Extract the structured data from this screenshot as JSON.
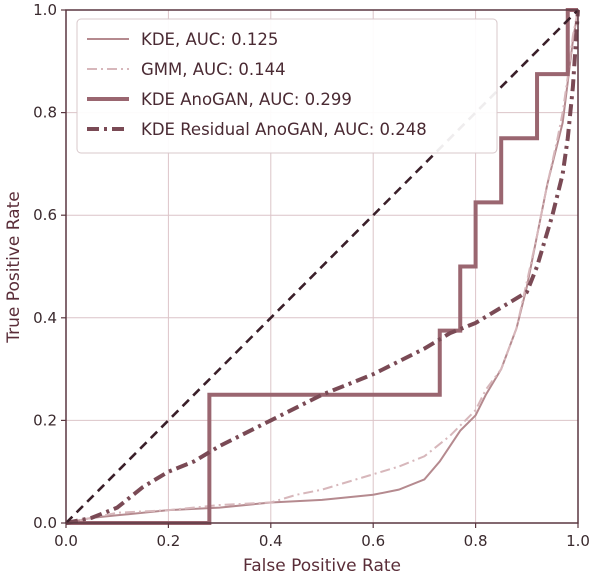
{
  "chart_data": {
    "type": "line",
    "title": "",
    "xlabel": "False Positive Rate",
    "ylabel": "True Positive Rate",
    "xlim": [
      0.0,
      1.0
    ],
    "ylim": [
      0.0,
      1.0
    ],
    "x_ticks": [
      "0.0",
      "0.2",
      "0.4",
      "0.6",
      "0.8",
      "1.0"
    ],
    "y_ticks": [
      "0.0",
      "0.2",
      "0.4",
      "0.6",
      "0.8",
      "1.0"
    ],
    "grid": true,
    "legend_position": "top-left",
    "series": [
      {
        "name": "KDE, AUC: 0.125",
        "color": "#b58a8f",
        "style": "solid",
        "width": "thin",
        "points": [
          [
            0,
            0
          ],
          [
            0.05,
            0.01
          ],
          [
            0.1,
            0.015
          ],
          [
            0.2,
            0.025
          ],
          [
            0.3,
            0.03
          ],
          [
            0.4,
            0.04
          ],
          [
            0.5,
            0.045
          ],
          [
            0.6,
            0.055
          ],
          [
            0.65,
            0.065
          ],
          [
            0.7,
            0.085
          ],
          [
            0.73,
            0.12
          ],
          [
            0.75,
            0.15
          ],
          [
            0.77,
            0.18
          ],
          [
            0.79,
            0.2
          ],
          [
            0.8,
            0.21
          ],
          [
            0.82,
            0.25
          ],
          [
            0.85,
            0.3
          ],
          [
            0.88,
            0.38
          ],
          [
            0.9,
            0.46
          ],
          [
            0.92,
            0.56
          ],
          [
            0.94,
            0.66
          ],
          [
            0.96,
            0.74
          ],
          [
            0.97,
            0.78
          ],
          [
            0.98,
            0.86
          ],
          [
            0.99,
            0.94
          ],
          [
            1.0,
            1.0
          ]
        ]
      },
      {
        "name": "GMM, AUC: 0.144",
        "color": "#d7b7bb",
        "style": "dashdot",
        "width": "thin",
        "points": [
          [
            0,
            0
          ],
          [
            0.05,
            0.01
          ],
          [
            0.1,
            0.02
          ],
          [
            0.2,
            0.025
          ],
          [
            0.3,
            0.035
          ],
          [
            0.4,
            0.04
          ],
          [
            0.45,
            0.055
          ],
          [
            0.5,
            0.065
          ],
          [
            0.6,
            0.095
          ],
          [
            0.65,
            0.11
          ],
          [
            0.7,
            0.13
          ],
          [
            0.75,
            0.17
          ],
          [
            0.78,
            0.2
          ],
          [
            0.8,
            0.22
          ],
          [
            0.82,
            0.26
          ],
          [
            0.85,
            0.3
          ],
          [
            0.88,
            0.38
          ],
          [
            0.9,
            0.47
          ],
          [
            0.92,
            0.56
          ],
          [
            0.94,
            0.66
          ],
          [
            0.96,
            0.75
          ],
          [
            0.97,
            0.8
          ],
          [
            0.98,
            0.87
          ],
          [
            0.99,
            0.95
          ],
          [
            1.0,
            1.0
          ]
        ]
      },
      {
        "name": "KDE AnoGAN, AUC: 0.299",
        "color": "#9a6670",
        "style": "solid",
        "width": "thick",
        "points": [
          [
            0,
            0
          ],
          [
            0.28,
            0
          ],
          [
            0.28,
            0.25
          ],
          [
            0.73,
            0.25
          ],
          [
            0.73,
            0.375
          ],
          [
            0.77,
            0.375
          ],
          [
            0.77,
            0.5
          ],
          [
            0.8,
            0.5
          ],
          [
            0.8,
            0.625
          ],
          [
            0.85,
            0.625
          ],
          [
            0.85,
            0.75
          ],
          [
            0.92,
            0.75
          ],
          [
            0.92,
            0.875
          ],
          [
            0.98,
            0.875
          ],
          [
            0.98,
            1.0
          ],
          [
            1.0,
            1.0
          ]
        ]
      },
      {
        "name": "KDE Residual AnoGAN, AUC: 0.248",
        "color": "#7a4a55",
        "style": "dashdot",
        "width": "thick",
        "points": [
          [
            0,
            0
          ],
          [
            0.05,
            0.01
          ],
          [
            0.1,
            0.03
          ],
          [
            0.15,
            0.07
          ],
          [
            0.2,
            0.1
          ],
          [
            0.25,
            0.12
          ],
          [
            0.3,
            0.15
          ],
          [
            0.4,
            0.2
          ],
          [
            0.5,
            0.25
          ],
          [
            0.6,
            0.29
          ],
          [
            0.7,
            0.34
          ],
          [
            0.75,
            0.37
          ],
          [
            0.8,
            0.39
          ],
          [
            0.85,
            0.42
          ],
          [
            0.9,
            0.45
          ],
          [
            0.92,
            0.5
          ],
          [
            0.95,
            0.6
          ],
          [
            0.97,
            0.68
          ],
          [
            0.98,
            0.75
          ],
          [
            0.99,
            0.85
          ],
          [
            1.0,
            1.0
          ]
        ]
      },
      {
        "name": "",
        "color": "#3a1f29",
        "style": "dashed",
        "width": "medium",
        "points": [
          [
            0,
            0
          ],
          [
            1,
            1
          ]
        ]
      }
    ]
  }
}
